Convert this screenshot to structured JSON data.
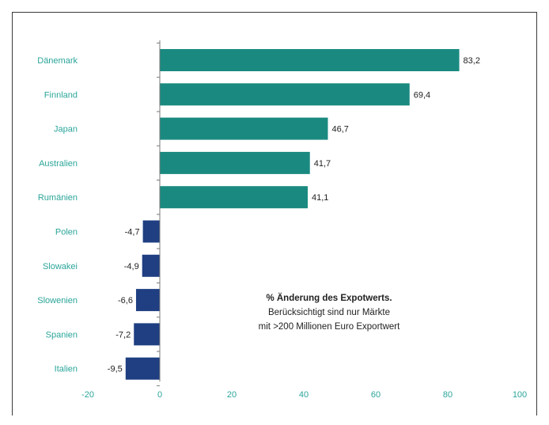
{
  "chart_data": {
    "type": "bar",
    "orientation": "horizontal",
    "categories": [
      "Dänemark",
      "Finnland",
      "Japan",
      "Australien",
      "Rumänien",
      "Polen",
      "Slowakei",
      "Slowenien",
      "Spanien",
      "Italien"
    ],
    "values": [
      83.2,
      69.4,
      46.7,
      41.7,
      41.1,
      -4.7,
      -4.9,
      -6.6,
      -7.2,
      -9.5
    ],
    "value_labels": [
      "83,2",
      "69,4",
      "46,7",
      "41,7",
      "41,1",
      "-4,7",
      "-4,9",
      "-6,6",
      "-7,2",
      "-9,5"
    ],
    "xlim": [
      -20,
      100
    ],
    "xticks": [
      -20,
      0,
      20,
      40,
      60,
      80,
      100
    ],
    "grid": false,
    "colors": {
      "positive": "#1a8a80",
      "negative": "#1f3f82",
      "axis_labels": "#2ba59a",
      "axis": "#7a7a7a"
    },
    "annotation": {
      "title": "% Änderung des Expotwerts.",
      "line1": "Berücksichtigt sind nur Märkte",
      "line2": "mit >200 Millionen Euro Exportwert"
    }
  }
}
